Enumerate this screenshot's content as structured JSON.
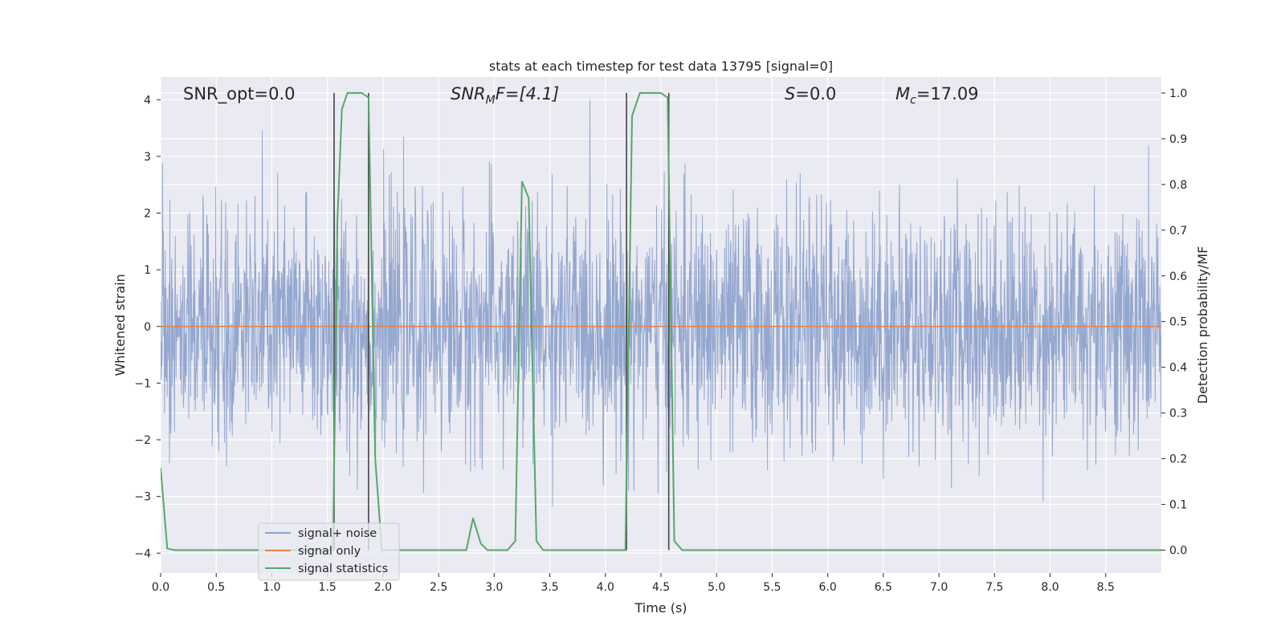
{
  "chart_data": {
    "type": "line",
    "title": "stats at each timestep for test data 13795 [signal=0]",
    "xlabel": "Time (s)",
    "ylabel_left": "Whitened strain",
    "ylabel_right": "Detection probability/MF",
    "xlim": [
      0,
      9.0
    ],
    "ylim_left": [
      -4.35,
      4.4
    ],
    "ylim_right": [
      -0.05,
      1.035
    ],
    "x_ticks": [
      "0.0",
      "0.5",
      "1.0",
      "1.5",
      "2.0",
      "2.5",
      "3.0",
      "3.5",
      "4.0",
      "4.5",
      "5.0",
      "5.5",
      "6.0",
      "6.5",
      "7.0",
      "7.5",
      "8.0",
      "8.5"
    ],
    "y_ticks_left": [
      "−4",
      "−3",
      "−2",
      "−1",
      "0",
      "1",
      "2",
      "3",
      "4"
    ],
    "y_ticks_right": [
      "0.0",
      "0.1",
      "0.2",
      "0.3",
      "0.4",
      "0.5",
      "0.6",
      "0.7",
      "0.8",
      "0.9",
      "1.0"
    ],
    "grid": true,
    "colors": {
      "noise": "#8fa3cc",
      "signal_only": "#dd8452",
      "statistics": "#55a868",
      "background": "#eaeaf2",
      "vlines": "#444444"
    },
    "annotations": {
      "snr_opt": "SNR_opt=0.0",
      "snr_mf_base": "SNR",
      "snr_mf_sub": "M",
      "snr_mf_tail": "F=[4.1]",
      "s_base": "S",
      "s_tail": "=0.0",
      "mc_base": "M",
      "mc_sub": "c",
      "mc_tail": "=17.09"
    },
    "vertical_lines_x": [
      1.56,
      1.87,
      4.19,
      4.57
    ],
    "series": [
      {
        "name": "signal+ noise",
        "axis": "left",
        "kind": "noise",
        "amplitude_range": [
          -4.0,
          4.0
        ]
      },
      {
        "name": "signal only",
        "axis": "left",
        "x": [
          0,
          9.0
        ],
        "y": [
          0,
          0
        ]
      },
      {
        "name": "signal statistics",
        "axis": "right",
        "x": [
          0,
          0.06,
          0.13,
          1.55,
          1.59,
          1.63,
          1.68,
          1.75,
          1.81,
          1.87,
          1.93,
          1.99,
          2.75,
          2.81,
          2.88,
          2.94,
          3.12,
          3.19,
          3.25,
          3.31,
          3.38,
          3.44,
          4.18,
          4.24,
          4.31,
          4.38,
          4.44,
          4.5,
          4.56,
          4.62,
          4.69,
          9.0
        ],
        "y": [
          0.18,
          0.003,
          0.0,
          0.0,
          0.72,
          0.965,
          1.0,
          1.0,
          1.0,
          0.99,
          0.2,
          0.0,
          0.0,
          0.07,
          0.014,
          0.0,
          0.0,
          0.02,
          0.807,
          0.77,
          0.02,
          0.0,
          0.0,
          0.95,
          1.0,
          1.0,
          1.0,
          1.0,
          0.99,
          0.02,
          0.0,
          0.0
        ]
      }
    ]
  }
}
